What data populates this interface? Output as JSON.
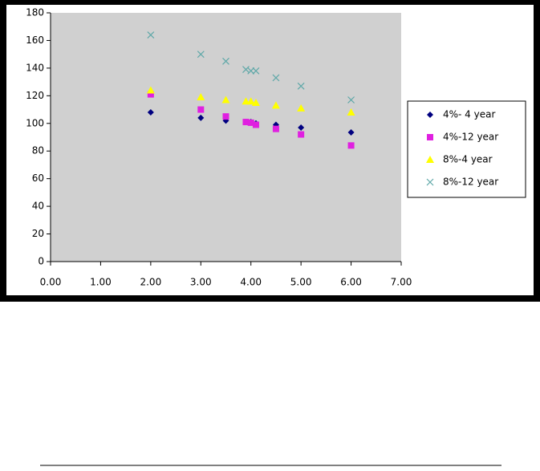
{
  "chart_data": {
    "type": "scatter",
    "x": [
      2,
      3,
      3.5,
      3.9,
      4,
      4.1,
      4.5,
      5,
      6
    ],
    "series": [
      {
        "name": "4%- 4 year",
        "color": "#000080",
        "marker": "diamond",
        "values": [
          108,
          104,
          102,
          101,
          101,
          100,
          99,
          97,
          93.5
        ]
      },
      {
        "name": "4%-12 year",
        "color": "#e020e0",
        "marker": "square",
        "values": [
          121,
          110,
          105,
          101,
          100.5,
          99,
          96,
          92,
          84
        ]
      },
      {
        "name": "8%-4 year",
        "color": "#ffff00",
        "marker": "triangle",
        "values": [
          124,
          119,
          117,
          116,
          116,
          115,
          113,
          111,
          108
        ]
      },
      {
        "name": "8%-12 year",
        "color": "#5fa8a8",
        "marker": "x",
        "values": [
          164,
          150,
          145,
          139,
          138,
          138,
          133,
          127,
          117
        ]
      }
    ],
    "xlim": [
      0,
      7
    ],
    "xticks": [
      {
        "value": 0,
        "label": "0.00"
      },
      {
        "value": 1,
        "label": "1.00"
      },
      {
        "value": 2,
        "label": "2.00"
      },
      {
        "value": 3,
        "label": "3.00"
      },
      {
        "value": 4,
        "label": "4.00"
      },
      {
        "value": 5,
        "label": "5.00"
      },
      {
        "value": 6,
        "label": "6.00"
      },
      {
        "value": 7,
        "label": "7.00"
      }
    ],
    "ylim": [
      0,
      180
    ],
    "yticks": [
      0,
      20,
      40,
      60,
      80,
      100,
      120,
      140,
      160,
      180
    ],
    "grid": false,
    "legend": "right"
  }
}
